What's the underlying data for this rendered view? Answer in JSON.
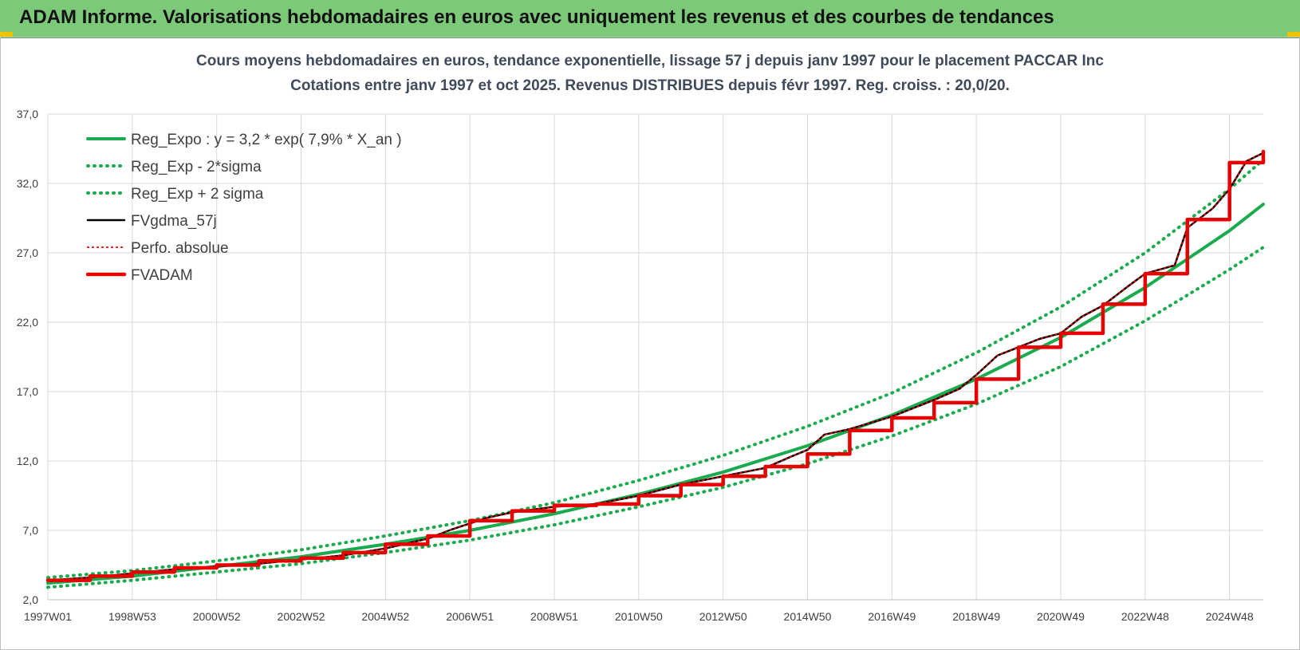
{
  "banner": {
    "title": "ADAM Informe. Valorisations hebdomadaires en euros avec uniquement les revenus et des courbes de tendances"
  },
  "colors": {
    "banner_bg": "#7dc97a",
    "trend": "#1aab4f",
    "smoothed": "#000000",
    "adam": "#e60000",
    "grid": "#d9d9d9"
  },
  "chart_data": {
    "type": "line",
    "title": "Cours moyens hebdomadaires en euros, tendance exponentielle, lissage 57 j depuis janv 1997 pour le placement PACCAR Inc",
    "subtitle": "Cotations entre janv 1997 et oct 2025. Revenus DISTRIBUES depuis févr 1997. Reg. croiss. : 20,0/20.",
    "xlabel": "",
    "ylabel": "",
    "ylim": [
      2.0,
      37.0
    ],
    "xlim": [
      1997.0,
      2025.8
    ],
    "yticks": [
      2.0,
      7.0,
      12.0,
      17.0,
      22.0,
      27.0,
      32.0,
      37.0
    ],
    "ytick_labels": [
      "2,0",
      "7,0",
      "12,0",
      "17,0",
      "22,0",
      "27,0",
      "32,0",
      "37,0"
    ],
    "xticks": [
      1997.0,
      1999.0,
      2001.0,
      2003.0,
      2005.0,
      2007.0,
      2009.0,
      2011.0,
      2013.0,
      2015.0,
      2017.0,
      2019.0,
      2021.0,
      2023.0,
      2025.0
    ],
    "xtick_labels": [
      "1997W01",
      "1998W53",
      "2000W52",
      "2002W52",
      "2004W52",
      "2006W51",
      "2008W51",
      "2010W50",
      "2012W50",
      "2014W50",
      "2016W49",
      "2018W49",
      "2020W49",
      "2022W48",
      "2024W48"
    ],
    "grid": true,
    "legend_position": "top-left",
    "series": [
      {
        "name": "Reg_Expo : y = 3,2 * exp( 7,9% *  X_an )",
        "style": "solid",
        "color": "#1aab4f",
        "x": [
          1997.0,
          1999.0,
          2001.0,
          2003.0,
          2005.0,
          2007.0,
          2009.0,
          2011.0,
          2013.0,
          2015.0,
          2017.0,
          2019.0,
          2021.0,
          2023.0,
          2025.0,
          2025.8
        ],
        "values": [
          3.2,
          3.7,
          4.4,
          5.1,
          6.0,
          7.0,
          8.2,
          9.6,
          11.2,
          13.1,
          15.3,
          17.9,
          20.9,
          24.5,
          28.6,
          30.5
        ]
      },
      {
        "name": "Reg_Exp - 2*sigma",
        "style": "dotted",
        "color": "#1aab4f",
        "x": [
          1997.0,
          1999.0,
          2001.0,
          2003.0,
          2005.0,
          2007.0,
          2009.0,
          2011.0,
          2013.0,
          2015.0,
          2017.0,
          2019.0,
          2021.0,
          2023.0,
          2025.0,
          2025.8
        ],
        "values": [
          2.9,
          3.4,
          4.0,
          4.6,
          5.4,
          6.3,
          7.4,
          8.7,
          10.1,
          11.8,
          13.8,
          16.1,
          18.8,
          22.1,
          25.8,
          27.4
        ]
      },
      {
        "name": "Reg_Exp + 2 sigma",
        "style": "dotted",
        "color": "#1aab4f",
        "x": [
          1997.0,
          1999.0,
          2001.0,
          2003.0,
          2005.0,
          2007.0,
          2009.0,
          2011.0,
          2013.0,
          2015.0,
          2017.0,
          2019.0,
          2021.0,
          2023.0,
          2025.0,
          2025.8
        ],
        "values": [
          3.6,
          4.1,
          4.8,
          5.6,
          6.6,
          7.7,
          9.0,
          10.6,
          12.4,
          14.5,
          16.9,
          19.8,
          23.1,
          27.0,
          31.6,
          33.7
        ]
      },
      {
        "name": "FVgdma_57j",
        "style": "solid",
        "color": "#000000",
        "x": [
          1997.0,
          1998.0,
          1999.0,
          2000.0,
          2001.0,
          2002.0,
          2003.0,
          2004.0,
          2005.0,
          2006.0,
          2006.6,
          2007.4,
          2008.0,
          2009.0,
          2010.0,
          2011.0,
          2012.0,
          2013.0,
          2014.0,
          2014.6,
          2015.0,
          2015.4,
          2016.0,
          2017.0,
          2018.0,
          2018.6,
          2019.0,
          2019.5,
          2020.0,
          2020.5,
          2021.0,
          2021.5,
          2022.0,
          2022.6,
          2023.0,
          2023.7,
          2024.0,
          2024.6,
          2025.0,
          2025.4,
          2025.8
        ],
        "values": [
          3.4,
          3.6,
          3.9,
          4.2,
          4.4,
          4.6,
          4.9,
          5.2,
          5.7,
          6.4,
          7.1,
          7.9,
          8.3,
          8.7,
          8.9,
          9.5,
          10.3,
          10.9,
          11.5,
          12.3,
          12.8,
          13.9,
          14.3,
          15.2,
          16.4,
          17.2,
          18.2,
          19.6,
          20.2,
          20.8,
          21.2,
          22.4,
          23.2,
          24.6,
          25.5,
          26.1,
          28.8,
          30.2,
          31.6,
          33.6,
          34.2
        ]
      },
      {
        "name": "Perfo. absolue",
        "style": "dotted",
        "color": "#e60000",
        "x": [
          1997.0,
          1998.0,
          1999.0,
          2000.0,
          2001.0,
          2002.0,
          2003.0,
          2004.0,
          2005.0,
          2006.0,
          2006.6,
          2007.4,
          2008.0,
          2009.0,
          2010.0,
          2011.0,
          2012.0,
          2013.0,
          2014.0,
          2014.6,
          2015.0,
          2015.4,
          2016.0,
          2017.0,
          2018.0,
          2018.6,
          2019.0,
          2019.5,
          2020.0,
          2020.5,
          2021.0,
          2021.5,
          2022.0,
          2022.6,
          2023.0,
          2023.7,
          2024.0,
          2024.6,
          2025.0,
          2025.4,
          2025.8
        ],
        "values": [
          3.4,
          3.6,
          3.9,
          4.2,
          4.4,
          4.6,
          4.9,
          5.2,
          5.7,
          6.4,
          7.1,
          7.9,
          8.3,
          8.7,
          8.9,
          9.5,
          10.3,
          10.9,
          11.5,
          12.3,
          12.8,
          13.9,
          14.3,
          15.2,
          16.4,
          17.2,
          18.2,
          19.6,
          20.2,
          20.8,
          21.2,
          22.4,
          23.2,
          24.6,
          25.5,
          26.1,
          28.8,
          30.2,
          31.6,
          33.6,
          34.2
        ]
      },
      {
        "name": "FVADAM",
        "style": "step",
        "color": "#e60000",
        "x": [
          1997.0,
          1998.0,
          1999.0,
          2000.0,
          2001.0,
          2002.0,
          2003.0,
          2004.0,
          2005.0,
          2006.0,
          2007.0,
          2008.0,
          2009.0,
          2010.0,
          2011.0,
          2012.0,
          2013.0,
          2014.0,
          2015.0,
          2016.0,
          2017.0,
          2018.0,
          2019.0,
          2020.0,
          2021.0,
          2022.0,
          2023.0,
          2024.0,
          2025.0,
          2025.8
        ],
        "values": [
          3.4,
          3.7,
          4.0,
          4.3,
          4.5,
          4.8,
          5.0,
          5.4,
          6.0,
          6.6,
          7.7,
          8.4,
          8.8,
          8.9,
          9.5,
          10.3,
          10.9,
          11.6,
          12.5,
          14.2,
          15.1,
          16.2,
          17.9,
          20.2,
          21.2,
          23.3,
          25.5,
          29.4,
          33.5,
          34.3
        ]
      }
    ]
  }
}
